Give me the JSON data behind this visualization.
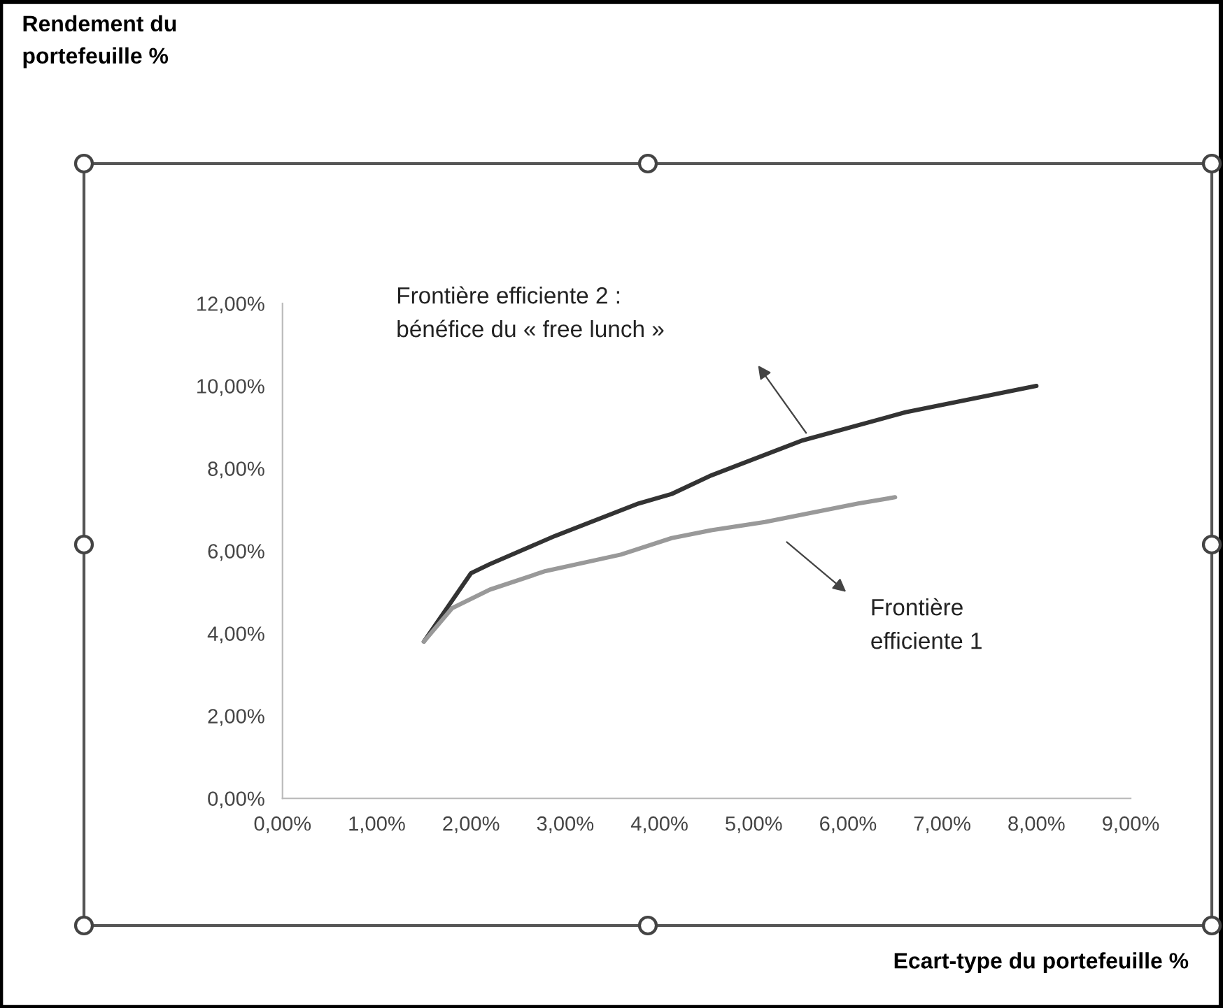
{
  "chart_data": {
    "type": "line",
    "series": [
      {
        "color": "#333333",
        "x": [
          1.5,
          2.0,
          2.2,
          2.89,
          3.78,
          4.13,
          4.55,
          5.52,
          6.61,
          8.0
        ],
        "values": [
          3.8,
          5.46,
          5.68,
          6.36,
          7.15,
          7.38,
          7.83,
          8.68,
          9.36,
          10.0
        ]
      },
      {
        "color": "#999999",
        "x": [
          1.5,
          1.8,
          2.2,
          2.79,
          3.59,
          4.13,
          4.55,
          5.12,
          6.11,
          6.5
        ],
        "values": [
          3.8,
          4.61,
          5.06,
          5.51,
          5.91,
          6.31,
          6.5,
          6.7,
          7.15,
          7.3
        ]
      }
    ],
    "annotations": [
      "Rendement du\nportefeuille %",
      "Frontière efficiente 2 :\nbénéfice du « free lunch »",
      "Frontière\nefficiente 1",
      "Ecart-type du portefeuille %"
    ],
    "xlim": [
      0,
      9
    ],
    "ylim": [
      0,
      12
    ],
    "xticks": [
      {
        "value": 0,
        "label": "0,00%"
      },
      {
        "value": 1,
        "label": "1,00%"
      },
      {
        "value": 2,
        "label": "2,00%"
      },
      {
        "value": 3,
        "label": "3,00%"
      },
      {
        "value": 4,
        "label": "4,00%"
      },
      {
        "value": 5,
        "label": "5,00%"
      },
      {
        "value": 6,
        "label": "6,00%"
      },
      {
        "value": 7,
        "label": "7,00%"
      },
      {
        "value": 8,
        "label": "8,00%"
      },
      {
        "value": 9,
        "label": "9,00%"
      }
    ],
    "yticks": [
      {
        "value": 0,
        "label": "0,00%"
      },
      {
        "value": 2,
        "label": "2,00%"
      },
      {
        "value": 4,
        "label": "4,00%"
      },
      {
        "value": 6,
        "label": "6,00%"
      },
      {
        "value": 8,
        "label": "8,00%"
      },
      {
        "value": 10,
        "label": "10,00%"
      },
      {
        "value": 12,
        "label": "12,00%"
      }
    ],
    "grid": false,
    "marker": "none",
    "line_style": "solid"
  }
}
